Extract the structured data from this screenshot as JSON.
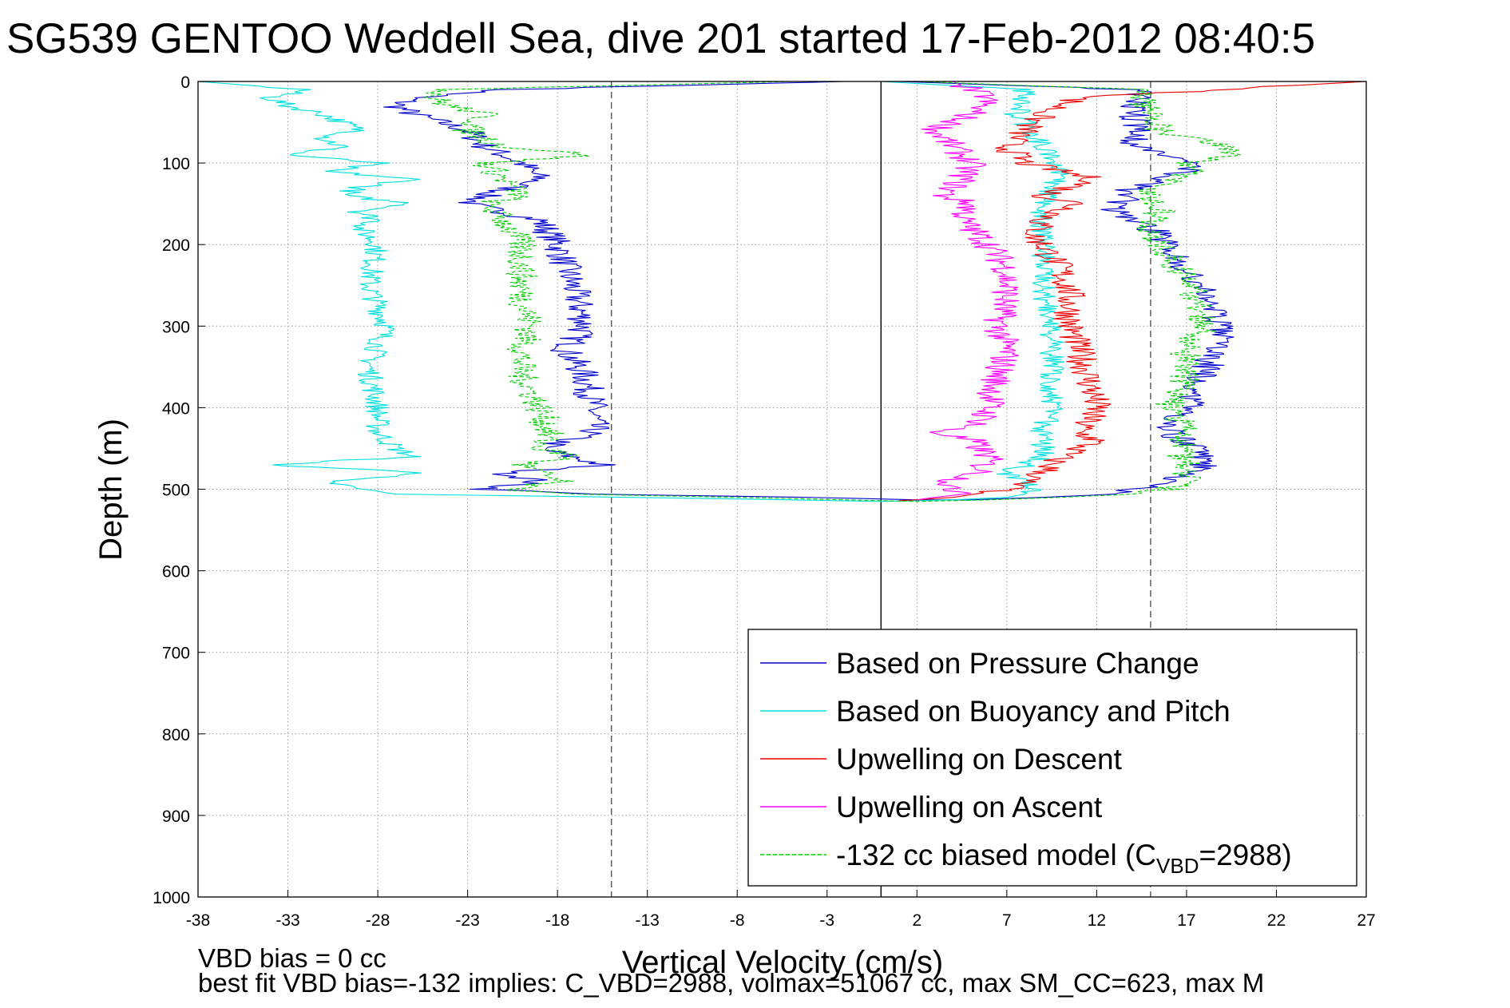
{
  "chart_data": {
    "type": "line",
    "title": "SG539 GENTOO Weddell Sea, dive 201 started 17-Feb-2012 08:40:5",
    "xlabel": "Vertical Velocity (cm/s)",
    "ylabel": "Depth (m)",
    "xlim": [
      -38,
      27
    ],
    "ylim": [
      0,
      1000
    ],
    "y_reversed": true,
    "grid": true,
    "legend_position": "lower-right",
    "x_ticks": [
      -38,
      -33,
      -28,
      -23,
      -18,
      -13,
      -8,
      -3,
      2,
      7,
      12,
      17,
      22,
      27
    ],
    "y_ticks": [
      0,
      100,
      200,
      300,
      400,
      500,
      600,
      700,
      800,
      900,
      1000
    ],
    "reference_lines": [
      {
        "x": 0,
        "style": "solid",
        "color": "#000000"
      },
      {
        "x": -15,
        "style": "dashed",
        "color": "#555555"
      },
      {
        "x": 15,
        "style": "dashed",
        "color": "#555555"
      }
    ],
    "series": [
      {
        "name": "Based on Pressure Change",
        "color": "#0000cc",
        "dash": "solid",
        "depth": [
          0,
          10,
          20,
          30,
          40,
          60,
          80,
          100,
          120,
          140,
          150,
          170,
          200,
          230,
          260,
          300,
          330,
          360,
          400,
          430,
          450,
          470,
          480,
          490,
          500,
          506,
          510,
          513,
          513,
          510,
          506,
          500,
          490,
          480,
          470,
          450,
          430,
          400,
          360,
          330,
          300,
          260,
          230,
          200,
          180,
          160,
          130,
          110,
          100,
          90,
          80,
          60,
          40,
          20,
          10,
          0
        ],
        "values": [
          -2,
          -21,
          -26,
          -27,
          -26,
          -23,
          -22,
          -20,
          -19,
          -22,
          -23,
          -19,
          -18,
          -17.5,
          -17,
          -16.5,
          -17.5,
          -16.5,
          -16,
          -16,
          -19,
          -15.5,
          -21,
          -19,
          -22,
          -16,
          -4,
          2,
          5,
          9,
          13,
          14,
          16,
          17.5,
          18,
          17.5,
          16,
          17,
          18,
          18.5,
          19,
          18,
          17,
          16,
          15,
          13,
          14,
          17,
          18,
          15.5,
          14,
          14.5,
          14,
          14.5,
          14,
          1
        ]
      },
      {
        "name": "Based on Buoyancy and Pitch",
        "color": "#00e0e0",
        "dash": "solid",
        "depth": [
          0,
          10,
          20,
          30,
          40,
          50,
          60,
          70,
          80,
          90,
          100,
          110,
          120,
          130,
          140,
          150,
          160,
          170,
          180,
          200,
          250,
          300,
          350,
          400,
          430,
          450,
          460,
          470,
          480,
          490,
          500,
          506,
          510,
          513,
          515,
          513,
          510,
          506,
          500,
          490,
          480,
          470,
          460,
          450,
          430,
          400,
          350,
          300,
          250,
          200,
          150,
          130,
          110,
          100,
          80,
          60,
          40,
          20,
          10,
          0
        ],
        "values": [
          -38,
          -32,
          -34,
          -33,
          -31,
          -30,
          -29,
          -31,
          -30,
          -33,
          -28,
          -31,
          -26,
          -29,
          -30,
          -26,
          -29,
          -28,
          -29,
          -28,
          -28.5,
          -27.5,
          -28.5,
          -28,
          -28,
          -27,
          -26,
          -34,
          -25,
          -31,
          -29,
          -27,
          -14,
          -5,
          0,
          4,
          7,
          8,
          8.5,
          8,
          7,
          8,
          9,
          9,
          9,
          9.5,
          9.5,
          9.5,
          9,
          9,
          9,
          9.5,
          10,
          9.5,
          9,
          8.5,
          7.5,
          8,
          8,
          0
        ]
      },
      {
        "name": "Upwelling on Descent",
        "color": "#ee0000",
        "dash": "solid",
        "depth": [
          0,
          20,
          40,
          60,
          80,
          100,
          120,
          140,
          150,
          170,
          190,
          200,
          230,
          260,
          300,
          330,
          360,
          400,
          430,
          440,
          460,
          480,
          500,
          510,
          513,
          514
        ],
        "values": [
          27,
          11,
          9,
          8,
          7,
          8,
          12,
          9,
          11,
          9,
          8.5,
          9,
          10,
          10.5,
          10.5,
          11,
          11.5,
          12,
          11,
          12,
          10,
          9,
          7,
          4,
          2,
          1
        ]
      },
      {
        "name": "Upwelling on Ascent",
        "color": "#ff00ff",
        "dash": "solid",
        "depth": [
          0,
          20,
          40,
          60,
          80,
          100,
          120,
          140,
          150,
          170,
          190,
          200,
          230,
          260,
          300,
          330,
          360,
          400,
          420,
          430,
          440,
          460,
          480,
          490,
          500,
          505,
          510,
          513
        ],
        "values": [
          4,
          6,
          5,
          3,
          4,
          5,
          4.5,
          3.5,
          5,
          4.5,
          5.5,
          6,
          7,
          7,
          6.5,
          7,
          6.5,
          6,
          5.5,
          3,
          5,
          6,
          5.5,
          4,
          3.5,
          5,
          3,
          2
        ]
      },
      {
        "name": "-132 cc biased model (C_VBD=2988)",
        "color": "#00cc00",
        "dash": "dashed",
        "depth": [
          0,
          10,
          20,
          30,
          40,
          60,
          80,
          90,
          100,
          120,
          140,
          150,
          170,
          200,
          230,
          260,
          300,
          330,
          360,
          400,
          430,
          450,
          460,
          470,
          480,
          490,
          500,
          506,
          510,
          513,
          515,
          513,
          510,
          506,
          500,
          490,
          470,
          450,
          430,
          400,
          360,
          330,
          300,
          260,
          230,
          200,
          180,
          160,
          130,
          110,
          100,
          90,
          80,
          60,
          40,
          20,
          10,
          0
        ],
        "values": [
          -5,
          -24,
          -25,
          -24,
          -22,
          -23,
          -21,
          -16,
          -22,
          -21,
          -20,
          -22,
          -21,
          -20,
          -20,
          -20,
          -19.5,
          -20,
          -20,
          -19,
          -18.5,
          -19,
          -17,
          -20,
          -19,
          -18,
          -21,
          -17,
          -8,
          -2,
          2,
          6,
          10,
          14,
          16,
          17,
          17,
          16.5,
          17,
          16,
          17,
          17,
          18,
          17.5,
          16.5,
          15.5,
          15,
          15.5,
          15,
          17.5,
          17,
          20,
          19,
          15.5,
          15,
          14.5,
          14,
          2
        ]
      }
    ],
    "legend_label_subscript": "VBD",
    "legend_main_text": "-132 cc biased model (C",
    "legend_tail_text": "=2988)",
    "footnotes": [
      "VBD bias = 0 cc",
      "best fit VBD bias=-132 implies: C_VBD=2988, volmax=51067 cc, max SM_CC=623, max M"
    ]
  }
}
